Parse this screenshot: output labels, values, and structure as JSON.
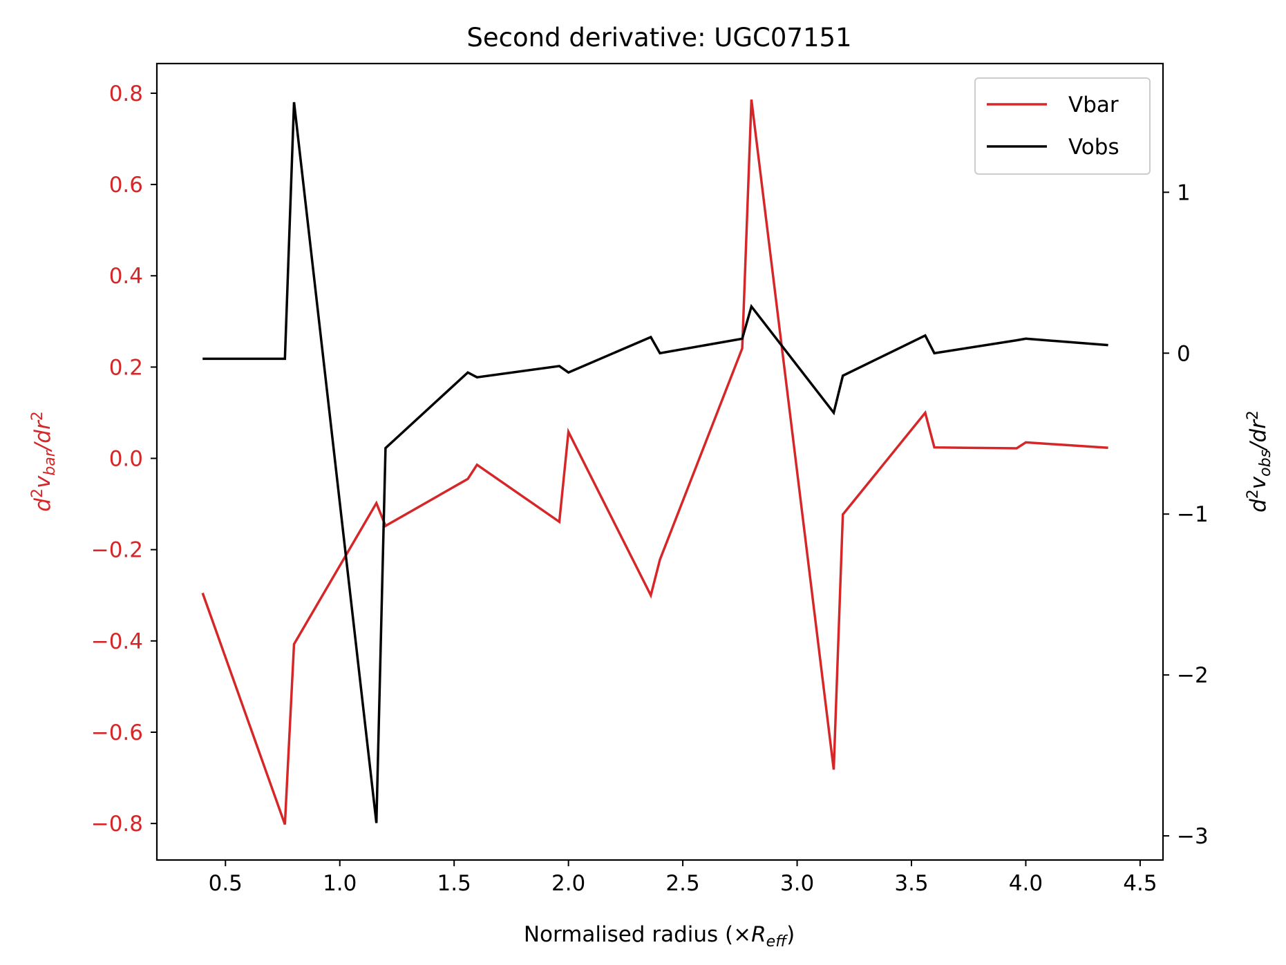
{
  "chart_data": {
    "type": "line",
    "title": "Second derivative: UGC07151",
    "xlabel": {
      "main": "Normalised radius (×",
      "sym": "R",
      "sub": "eff",
      "close": ")"
    },
    "ylabel_left": {
      "d": "d",
      "sup1": "2",
      "v": "v",
      "sub": "bar",
      "slash": "/dr",
      "sup2": "2"
    },
    "ylabel_right": {
      "d": "d",
      "sup1": "2",
      "v": "v",
      "sub": "obs",
      "slash": "/dr",
      "sup2": "2"
    },
    "xlim": [
      0.2,
      4.6
    ],
    "ylim_left": [
      -0.88,
      0.865
    ],
    "ylim_right": [
      -3.15,
      1.8
    ],
    "x_ticks": [
      0.5,
      1.0,
      1.5,
      2.0,
      2.5,
      3.0,
      3.5,
      4.0,
      4.5
    ],
    "x_tick_labels": [
      "0.5",
      "1.0",
      "1.5",
      "2.0",
      "2.5",
      "3.0",
      "3.5",
      "4.0",
      "4.5"
    ],
    "y_left_ticks": [
      0.8,
      0.6,
      0.4,
      0.2,
      0.0,
      -0.2,
      -0.4,
      -0.6,
      -0.8
    ],
    "y_left_tick_labels": [
      "0.8",
      "0.6",
      "0.4",
      "0.2",
      "0.0",
      "−0.2",
      "−0.4",
      "−0.6",
      "−0.8"
    ],
    "y_right_ticks": [
      1,
      0,
      -1,
      -2,
      -3
    ],
    "y_right_tick_labels": [
      "1",
      "0",
      "−1",
      "−2",
      "−3"
    ],
    "legend_position": "top-right",
    "colors": {
      "vbar": "#d62728",
      "vobs": "#000000",
      "axis": "#000000"
    },
    "series": [
      {
        "name": "Vbar",
        "axis": "left",
        "x": [
          0.4,
          0.76,
          0.8,
          1.16,
          1.2,
          1.56,
          1.6,
          1.96,
          2.0,
          2.36,
          2.4,
          2.76,
          2.8,
          3.16,
          3.2,
          3.56,
          3.6,
          3.96,
          4.0,
          4.36
        ],
        "y": [
          -0.295,
          -0.802,
          -0.407,
          -0.098,
          -0.148,
          -0.045,
          -0.014,
          -0.139,
          0.058,
          -0.3,
          -0.222,
          0.241,
          0.786,
          -0.682,
          -0.123,
          0.1,
          0.024,
          0.022,
          0.035,
          0.023
        ]
      },
      {
        "name": "Vobs",
        "axis": "right",
        "x": [
          0.4,
          0.76,
          0.8,
          1.16,
          1.2,
          1.56,
          1.6,
          1.96,
          2.0,
          2.36,
          2.4,
          2.76,
          2.8,
          3.16,
          3.2,
          3.56,
          3.6,
          3.96,
          4.0,
          4.36
        ],
        "y": [
          -0.035,
          -0.035,
          1.56,
          -2.92,
          -0.59,
          -0.12,
          -0.15,
          -0.08,
          -0.12,
          0.1,
          0.0,
          0.09,
          0.29,
          -0.37,
          -0.14,
          0.11,
          0.0,
          0.08,
          0.09,
          0.05
        ]
      }
    ]
  }
}
